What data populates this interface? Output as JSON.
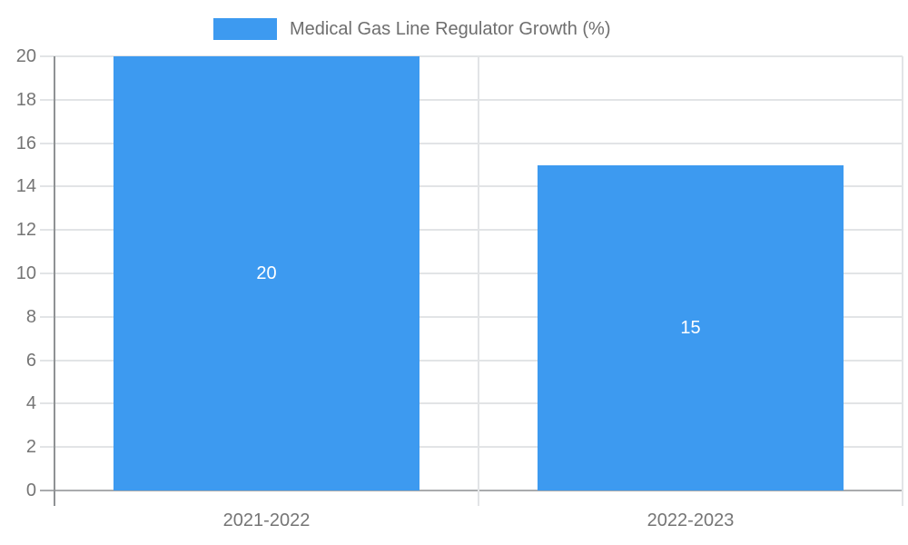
{
  "chart_data": {
    "type": "bar",
    "title": "",
    "xlabel": "",
    "ylabel": "",
    "legend": {
      "label": "Medical Gas Line Regulator Growth (%)",
      "position": "top"
    },
    "categories": [
      "2021-2022",
      "2022-2023"
    ],
    "series": [
      {
        "name": "Medical Gas Line Regulator Growth (%)",
        "values": [
          20,
          15
        ]
      }
    ],
    "bar_value_labels": [
      "20",
      "15"
    ],
    "ylim": [
      0,
      20
    ],
    "ytick_step": 2,
    "ytick_labels": [
      "0",
      "2",
      "4",
      "6",
      "8",
      "10",
      "12",
      "14",
      "16",
      "18",
      "20"
    ],
    "grid": true,
    "legend_position": "top"
  },
  "colors": {
    "bar": "#3D9AF0",
    "gridline": "#e2e4e6",
    "axis_line": "#8f9294",
    "baseline": "#a9abad",
    "tick_label": "#757575",
    "legend_text": "#6e6e6e",
    "bar_value_label": "#ffffff",
    "background": "#ffffff"
  }
}
